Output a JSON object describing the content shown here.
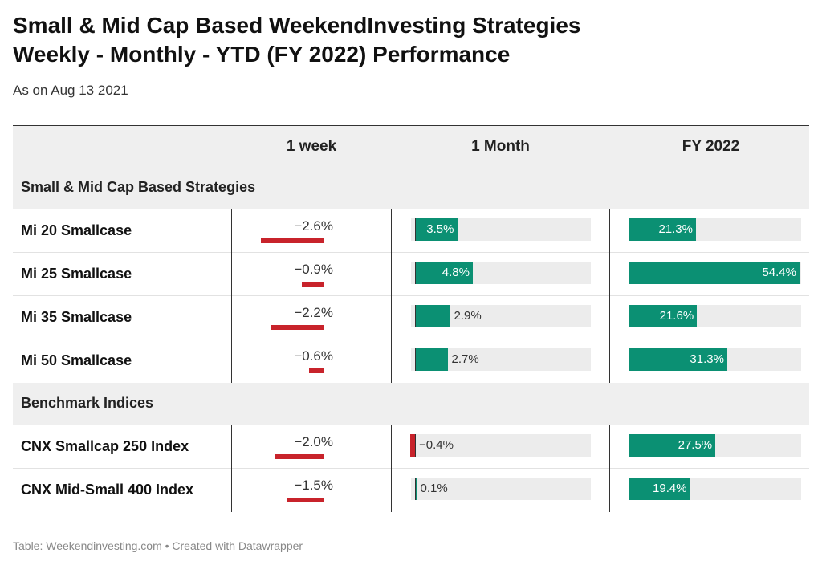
{
  "title_line1": "Small & Mid Cap Based WeekendInvesting Strategies",
  "title_line2": "Weekly - Monthly - YTD (FY 2022) Performance",
  "subtitle": "As on Aug 13 2021",
  "footer": "Table: Weekendinvesting.com • Created with Datawrapper",
  "colors": {
    "positive": "#0b9073",
    "negative": "#c8232b",
    "bar_background": "#ececec"
  },
  "chart_data": {
    "type": "table",
    "columns": [
      "",
      "1 week",
      "1 Month",
      "FY 2022"
    ],
    "groups": [
      {
        "label": "Small & Mid Cap Based Strategies",
        "rows": [
          {
            "name": "Mi 20 Smallcase",
            "week": -2.6,
            "week_label": "−2.6%",
            "month": 3.5,
            "month_label": "3.5%",
            "fy": 21.3,
            "fy_label": "21.3%"
          },
          {
            "name": "Mi 25 Smallcase",
            "week": -0.9,
            "week_label": "−0.9%",
            "month": 4.8,
            "month_label": "4.8%",
            "fy": 54.4,
            "fy_label": "54.4%"
          },
          {
            "name": "Mi 35 Smallcase",
            "week": -2.2,
            "week_label": "−2.2%",
            "month": 2.9,
            "month_label": "2.9%",
            "fy": 21.6,
            "fy_label": "21.6%"
          },
          {
            "name": "Mi 50 Smallcase",
            "week": -0.6,
            "week_label": "−0.6%",
            "month": 2.7,
            "month_label": "2.7%",
            "fy": 31.3,
            "fy_label": "31.3%"
          }
        ]
      },
      {
        "label": "Benchmark Indices",
        "rows": [
          {
            "name": "CNX Smallcap 250 Index",
            "week": -2.0,
            "week_label": "−2.0%",
            "month": -0.4,
            "month_label": "−0.4%",
            "fy": 27.5,
            "fy_label": "27.5%"
          },
          {
            "name": "CNX Mid-Small 400 Index",
            "week": -1.5,
            "week_label": "−1.5%",
            "month": 0.1,
            "month_label": "0.1%",
            "fy": 19.4,
            "fy_label": "19.4%"
          }
        ]
      }
    ]
  }
}
